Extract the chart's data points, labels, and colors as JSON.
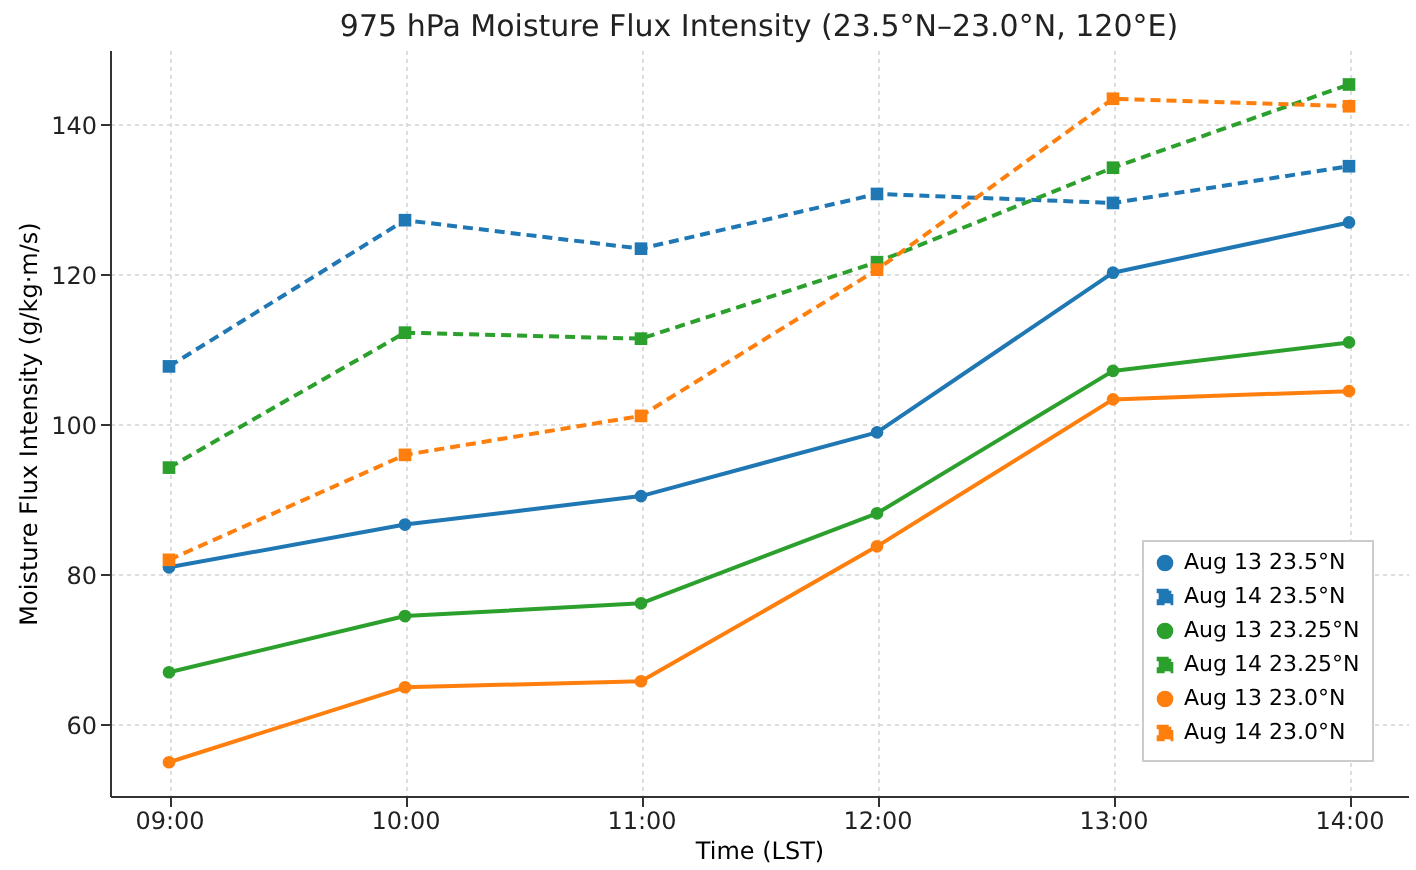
{
  "chart_data": {
    "type": "line",
    "title": "975 hPa Moisture Flux Intensity (23.5°N–23.0°N, 120°E)",
    "xlabel": "Time (LST)",
    "ylabel": "Moisture Flux Intensity (g/kg·m/s)",
    "categories": [
      "09:00",
      "10:00",
      "11:00",
      "12:00",
      "13:00",
      "14:00"
    ],
    "series": [
      {
        "name": "Aug 13 23.5°N",
        "color": "#1f77b4",
        "line_style": "solid",
        "marker": "circle",
        "values": [
          81,
          86.7,
          90.5,
          99,
          120.3,
          127
        ]
      },
      {
        "name": "Aug 14 23.5°N",
        "color": "#1f77b4",
        "line_style": "dashed",
        "marker": "square",
        "values": [
          107.8,
          127.3,
          123.5,
          130.8,
          129.6,
          134.5
        ]
      },
      {
        "name": "Aug 13 23.25°N",
        "color": "#2ca02c",
        "line_style": "solid",
        "marker": "circle",
        "values": [
          67,
          74.5,
          76.2,
          88.2,
          107.2,
          111
        ]
      },
      {
        "name": "Aug 14 23.25°N",
        "color": "#2ca02c",
        "line_style": "dashed",
        "marker": "square",
        "values": [
          94.3,
          112.3,
          111.5,
          121.7,
          134.3,
          145.4
        ]
      },
      {
        "name": "Aug 13 23.0°N",
        "color": "#ff7f0e",
        "line_style": "solid",
        "marker": "circle",
        "values": [
          55,
          65,
          65.8,
          83.8,
          103.4,
          104.5
        ]
      },
      {
        "name": "Aug 14 23.0°N",
        "color": "#ff7f0e",
        "line_style": "dashed",
        "marker": "square",
        "values": [
          82,
          96,
          101.2,
          120.7,
          143.5,
          142.5
        ]
      }
    ],
    "ylim": [
      50.5,
      150
    ],
    "yticks": [
      60,
      80,
      100,
      120,
      140
    ],
    "grid": true,
    "legend": "bottom right"
  }
}
